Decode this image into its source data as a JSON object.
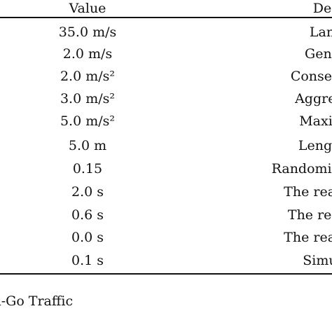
{
  "table": {
    "headers": {
      "value": "Value",
      "description": "De"
    },
    "rows": [
      {
        "value": "35.0 m/s",
        "description": "Lan"
      },
      {
        "value": "2.0 m/s",
        "description": "Gene"
      },
      {
        "value": "2.0 m/s²",
        "description": "Conserva"
      },
      {
        "value": "3.0 m/s²",
        "description": "Aggress"
      },
      {
        "value": "5.0 m/s²",
        "description": "Maxim"
      },
      {
        "value": "5.0 m",
        "description": "Length"
      },
      {
        "value": "0.15",
        "description": "Randomization"
      },
      {
        "value": "2.0 s",
        "description": "The reactio"
      },
      {
        "value": "0.6 s",
        "description": "The reacti"
      },
      {
        "value": "0.0 s",
        "description": "The reactio"
      },
      {
        "value": "0.1 s",
        "description": "Simul"
      }
    ]
  },
  "caption": "and-Go Traffic"
}
